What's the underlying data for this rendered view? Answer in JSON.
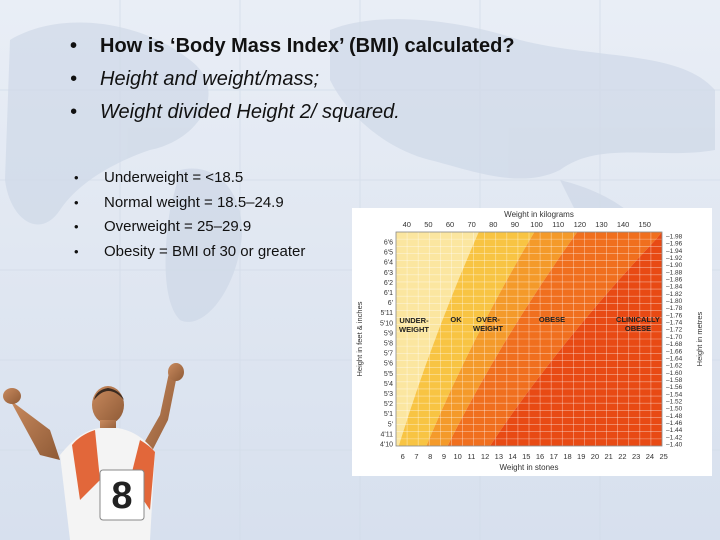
{
  "slide": {
    "bullets_top": [
      {
        "text": "How is ‘Body Mass Index’ (BMI) calculated?",
        "style": "bold"
      },
      {
        "text": "Height and weight/mass;",
        "style": "italic"
      },
      {
        "text": "Weight divided Height 2/ squared.",
        "style": "italic"
      }
    ],
    "bullets_mid": [
      "Underweight = <18.5",
      "Normal weight = 18.5–24.9",
      "Overweight = 25–29.9",
      "Obesity = BMI of 30 or greater"
    ],
    "bullet_glyph": "•"
  },
  "chart_data": {
    "type": "heatmap",
    "title": "Weight in kilograms",
    "xlabel_bottom": "Weight in stones",
    "ylabel_left": "Height in feet & inches",
    "ylabel_right": "Height in metres",
    "kg_ticks": [
      "40",
      "50",
      "60",
      "70",
      "80",
      "90",
      "100",
      "110",
      "120",
      "130",
      "140",
      "150"
    ],
    "stone_ticks": [
      "6",
      "7",
      "8",
      "9",
      "10",
      "11",
      "12",
      "13",
      "14",
      "15",
      "16",
      "17",
      "18",
      "19",
      "20",
      "21",
      "22",
      "23",
      "24",
      "25"
    ],
    "feet_ticks": [
      "6'6",
      "6'5",
      "6'4",
      "6'3",
      "6'2",
      "6'1",
      "6'",
      "5'11",
      "5'10",
      "5'9",
      "5'8",
      "5'7",
      "5'6",
      "5'5",
      "5'4",
      "5'3",
      "5'2",
      "5'1",
      "5'",
      "4'11",
      "4'10"
    ],
    "metre_ticks": [
      "1.98",
      "1.96",
      "1.94",
      "1.92",
      "1.90",
      "1.88",
      "1.86",
      "1.84",
      "1.82",
      "1.80",
      "1.78",
      "1.76",
      "1.74",
      "1.72",
      "1.70",
      "1.68",
      "1.66",
      "1.64",
      "1.62",
      "1.60",
      "1.58",
      "1.56",
      "1.54",
      "1.52",
      "1.50",
      "1.48",
      "1.46",
      "1.44",
      "1.42",
      "1.40"
    ],
    "zones": [
      {
        "label": "UNDER-\nWEIGHT",
        "bmi_upper": 18.5,
        "color": "#fbe6a0"
      },
      {
        "label": "OK",
        "bmi_upper": 25,
        "color": "#f8c443"
      },
      {
        "label": "OVER-\nWEIGHT",
        "bmi_upper": 30,
        "color": "#f49a2a"
      },
      {
        "label": "OBESE",
        "bmi_upper": 40,
        "color": "#f06f1e"
      },
      {
        "label": "CLINICALLY\nOBESE",
        "bmi_upper": null,
        "color": "#e84a14"
      }
    ]
  },
  "colors": {
    "text": "#111111",
    "background": "#e4eaf4",
    "grid": "#bfc7d4"
  },
  "icons": [
    "world-map-background",
    "runner-photo"
  ]
}
